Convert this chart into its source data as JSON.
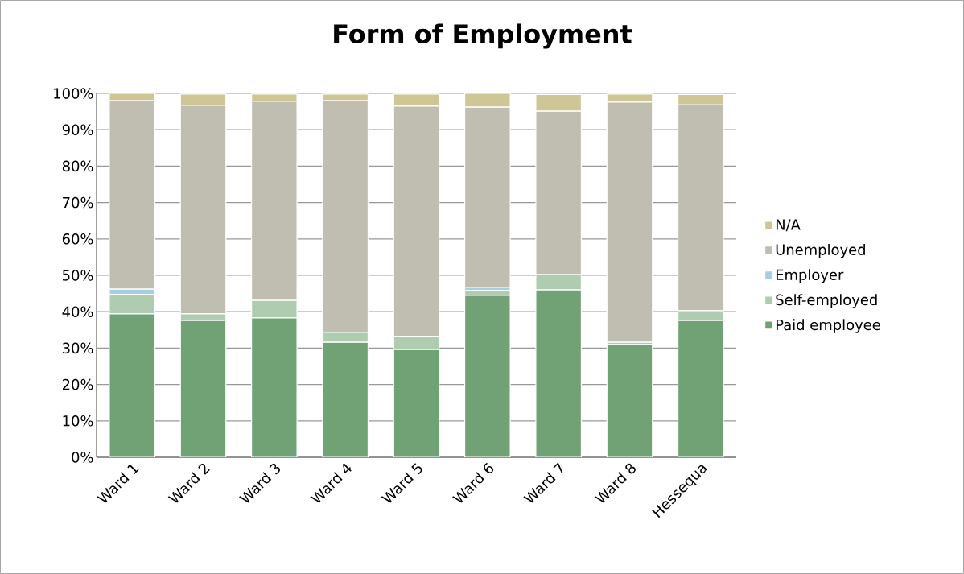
{
  "chart_data": {
    "type": "bar",
    "stacked": true,
    "title": "Form of Employment",
    "categories": [
      "Ward 1",
      "Ward 2",
      "Ward 3",
      "Ward 4",
      "Ward 5",
      "Ward 6",
      "Ward 7",
      "Ward 8",
      "Hessequa"
    ],
    "series": [
      {
        "name": "Paid employee",
        "color": "#71a275",
        "values": [
          39.4,
          37.6,
          38.3,
          31.6,
          29.6,
          44.5,
          46.0,
          31.0,
          37.6
        ]
      },
      {
        "name": "Self-employed",
        "color": "#b0ccb0",
        "values": [
          5.3,
          1.8,
          4.8,
          2.7,
          3.6,
          1.3,
          4.2,
          0.6,
          2.7
        ]
      },
      {
        "name": "Employer",
        "color": "#a5cfdc",
        "values": [
          1.5,
          null,
          null,
          null,
          null,
          0.9,
          null,
          null,
          null
        ]
      },
      {
        "name": "Unemployed",
        "color": "#c0beb0",
        "values": [
          51.8,
          57.3,
          54.7,
          63.7,
          63.3,
          49.5,
          44.9,
          66.0,
          56.5
        ]
      },
      {
        "name": "N/A",
        "color": "#cfc696",
        "values": [
          2.0,
          3.1,
          2.0,
          1.8,
          3.3,
          3.8,
          4.6,
          2.2,
          2.9
        ]
      }
    ],
    "ylim": [
      0,
      100
    ],
    "yticks": [
      {
        "value": 0,
        "label": "0%"
      },
      {
        "value": 10,
        "label": "10%"
      },
      {
        "value": 20,
        "label": "20%"
      },
      {
        "value": 30,
        "label": "30%"
      },
      {
        "value": 40,
        "label": "40%"
      },
      {
        "value": 50,
        "label": "50%"
      },
      {
        "value": 60,
        "label": "60%"
      },
      {
        "value": 70,
        "label": "70%"
      },
      {
        "value": 80,
        "label": "80%"
      },
      {
        "value": 90,
        "label": "90%"
      },
      {
        "value": 100,
        "label": "100%"
      }
    ],
    "grid": "y",
    "legend": "right"
  }
}
